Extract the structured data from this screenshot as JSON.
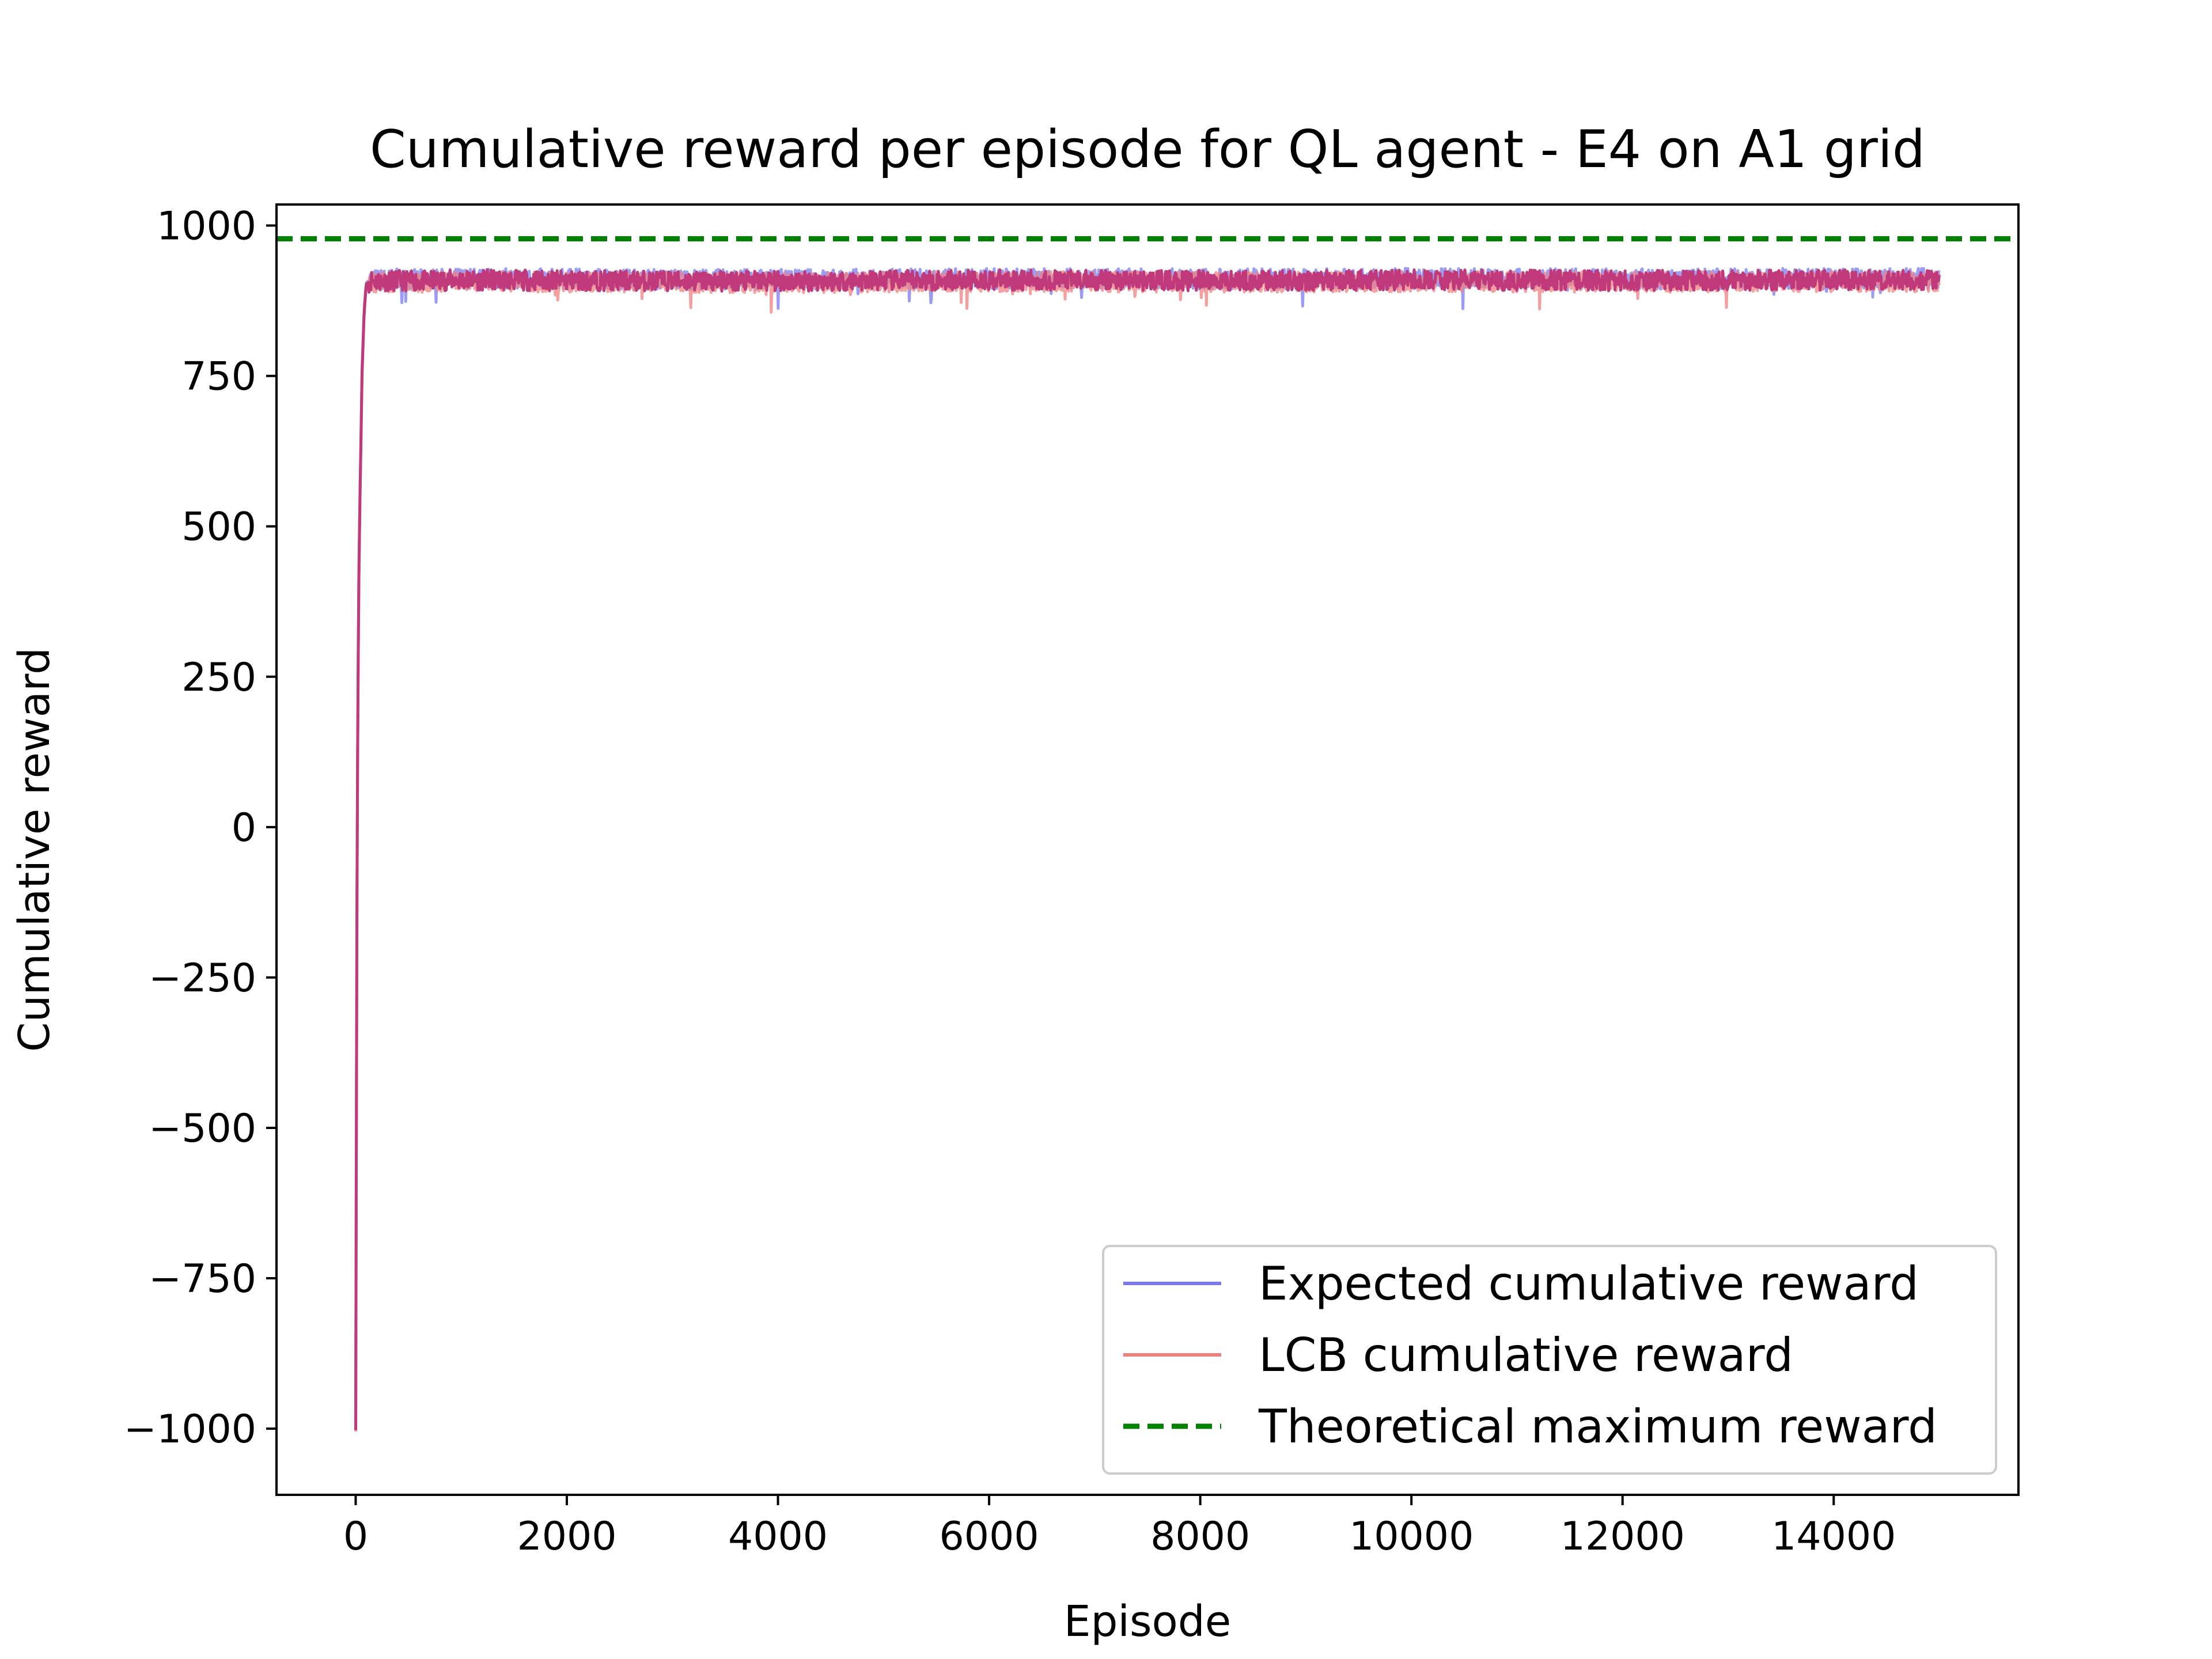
{
  "chart_data": {
    "type": "line",
    "title": "Cumulative reward per episode for QL agent - E4 on A1 grid",
    "xlabel": "Episode",
    "ylabel": "Cumulative reward",
    "xlim": [
      -750,
      15750
    ],
    "ylim": [
      -1110,
      1035
    ],
    "xticks": [
      0,
      2000,
      4000,
      6000,
      8000,
      10000,
      12000,
      14000
    ],
    "xtick_labels": [
      "0",
      "2000",
      "4000",
      "6000",
      "8000",
      "10000",
      "12000",
      "14000"
    ],
    "yticks": [
      1000,
      750,
      500,
      250,
      0,
      -250,
      -500,
      -750,
      -1000
    ],
    "ytick_labels": [
      "1000",
      "750",
      "500",
      "250",
      "0",
      "−250",
      "−500",
      "−750",
      "−1000"
    ],
    "grid": false,
    "legend_position": "lower-right",
    "series": [
      {
        "name": "Expected cumulative reward",
        "color": "#7b7bf0",
        "style": "solid",
        "x": [
          0,
          5,
          10,
          20,
          30,
          40,
          50,
          60,
          80,
          100,
          150,
          200,
          400,
          600,
          1000,
          2000,
          4000,
          6000,
          8000,
          10000,
          12000,
          14000,
          15000
        ],
        "y": [
          -1000,
          -600,
          -200,
          200,
          420,
          550,
          650,
          760,
          860,
          905,
          912,
          910,
          911,
          910,
          912,
          911,
          910,
          912,
          911,
          912,
          911,
          912,
          912
        ]
      },
      {
        "name": "LCB cumulative reward",
        "color": "#f08080",
        "style": "solid",
        "x": [
          0,
          5,
          10,
          20,
          30,
          40,
          50,
          60,
          80,
          100,
          150,
          200,
          400,
          600,
          1000,
          2000,
          4000,
          6000,
          8000,
          10000,
          12000,
          14000,
          15000
        ],
        "y": [
          -1005,
          -610,
          -210,
          190,
          410,
          540,
          640,
          750,
          850,
          900,
          907,
          905,
          906,
          905,
          907,
          906,
          905,
          907,
          906,
          907,
          906,
          907,
          907
        ]
      },
      {
        "name": "Theoretical maximum reward",
        "color": "#008000",
        "style": "dashed",
        "x": [
          -750,
          15750
        ],
        "y": [
          978,
          978
        ]
      }
    ]
  }
}
